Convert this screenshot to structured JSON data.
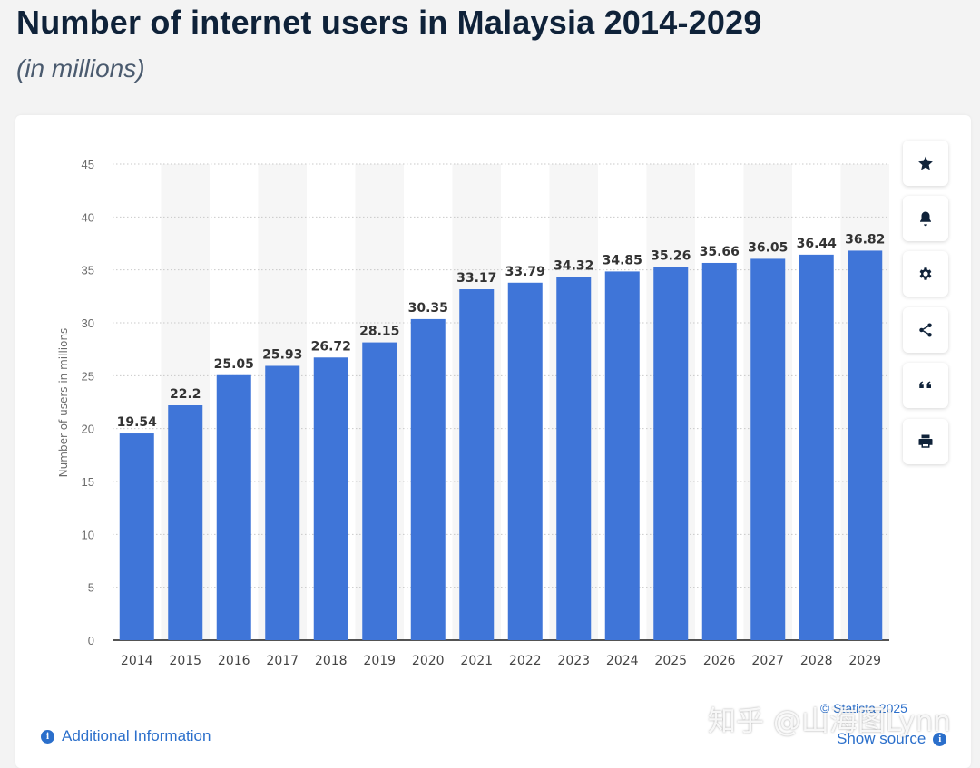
{
  "header": {
    "title": "Number of internet users in Malaysia 2014-2029",
    "subtitle": "(in millions)"
  },
  "chart_data": {
    "type": "bar",
    "categories": [
      "2014",
      "2015",
      "2016",
      "2017",
      "2018",
      "2019",
      "2020",
      "2021",
      "2022",
      "2023",
      "2024",
      "2025",
      "2026",
      "2027",
      "2028",
      "2029"
    ],
    "values": [
      19.54,
      22.2,
      25.05,
      25.93,
      26.72,
      28.15,
      30.35,
      33.17,
      33.79,
      34.32,
      34.85,
      35.26,
      35.66,
      36.05,
      36.44,
      36.82
    ],
    "value_labels": [
      "19.54",
      "22.2",
      "25.05",
      "25.93",
      "26.72",
      "28.15",
      "30.35",
      "33.17",
      "33.79",
      "34.32",
      "34.85",
      "35.26",
      "35.66",
      "36.05",
      "36.44",
      "36.82"
    ],
    "ylabel": "Number of users in millions",
    "xlabel": "",
    "ylim": [
      0,
      45
    ],
    "yticks": [
      "0",
      "5",
      "10",
      "15",
      "20",
      "25",
      "30",
      "35",
      "40",
      "45"
    ],
    "bar_color": "#3f75d8",
    "alt_band_color": "#f6f6f6",
    "grid": true
  },
  "toolbar": {
    "buttons": [
      {
        "name": "favorite-button",
        "icon": "star-icon"
      },
      {
        "name": "notification-button",
        "icon": "bell-icon"
      },
      {
        "name": "settings-button",
        "icon": "gear-icon"
      },
      {
        "name": "share-button",
        "icon": "share-icon"
      },
      {
        "name": "cite-button",
        "icon": "quote-icon"
      },
      {
        "name": "print-button",
        "icon": "printer-icon"
      }
    ]
  },
  "footer": {
    "additional_info": "Additional Information",
    "copyright": "© Statista 2025",
    "show_source": "Show source",
    "watermark": "知乎 @山海图Lynn"
  },
  "colors": {
    "accent": "#2b6fcb",
    "title": "#0f2239"
  }
}
